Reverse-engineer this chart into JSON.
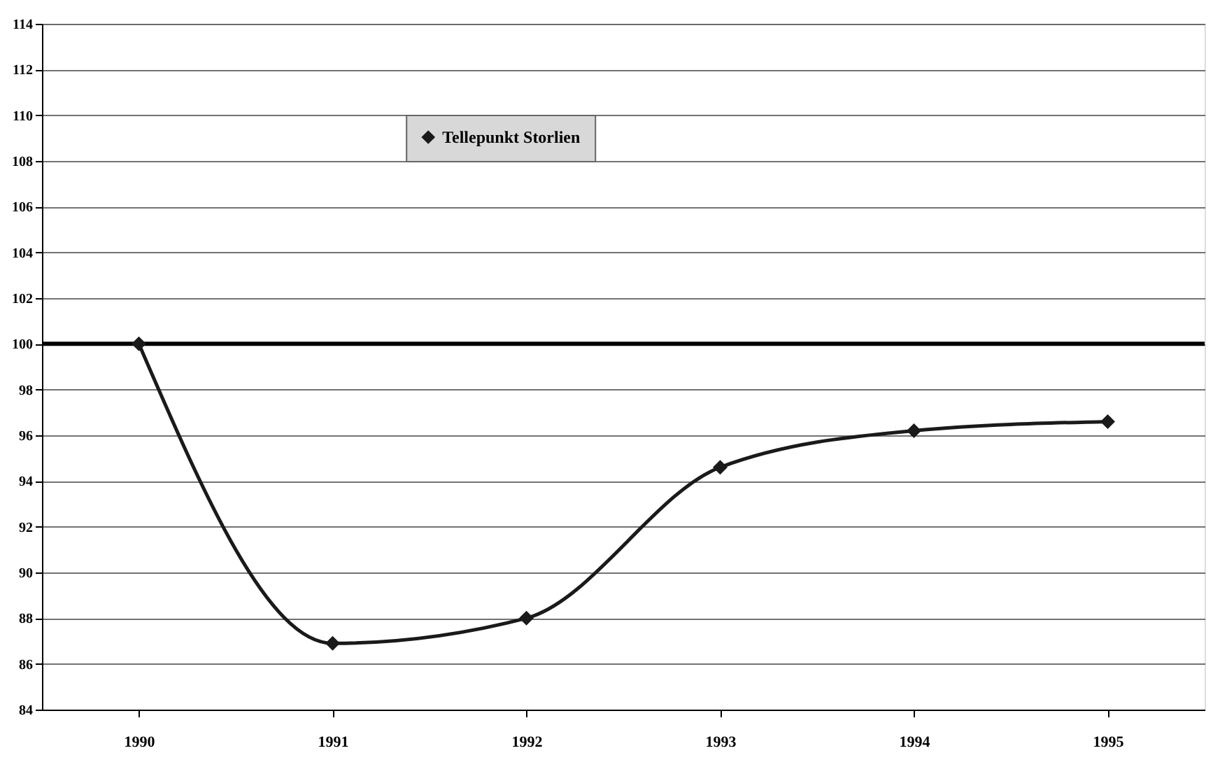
{
  "chart_data": {
    "type": "line",
    "categories": [
      "1990",
      "1991",
      "1992",
      "1993",
      "1994",
      "1995"
    ],
    "series": [
      {
        "name": "Tellepunkt Storlien",
        "color": "#1a1a1a",
        "values": [
          100,
          86.9,
          88.0,
          94.6,
          96.2,
          96.6
        ]
      }
    ],
    "ylim": [
      84,
      114
    ],
    "yticks": [
      84,
      86,
      88,
      90,
      92,
      94,
      96,
      98,
      100,
      102,
      104,
      106,
      108,
      110,
      112,
      114
    ],
    "ref_lines": [
      {
        "axis": "y",
        "value": 100,
        "color": "#000000"
      }
    ],
    "grid": "y",
    "legend": "top",
    "marker": "diamond",
    "line_style": "solid"
  }
}
